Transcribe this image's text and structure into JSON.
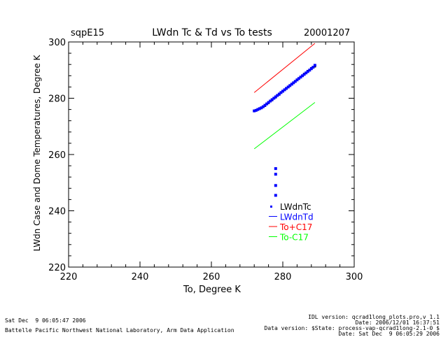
{
  "chart_data": {
    "type": "scatter",
    "site": "sqpE15",
    "title": "LWdn Tc & Td vs To tests",
    "date": "20001207",
    "xlabel": "To, Degree K",
    "ylabel": "LWdn Case and Dome Temperatures, Degree K",
    "xlim": [
      220,
      300
    ],
    "ylim": [
      220,
      300
    ],
    "xticks": [
      "220",
      "240",
      "260",
      "280",
      "300"
    ],
    "yticks": [
      "220",
      "240",
      "260",
      "280",
      "300"
    ],
    "legend_position": "lower-right",
    "series": [
      {
        "name": "LWdnTc",
        "color": "#000000",
        "kind": "points",
        "x": [
          272.0,
          273.0,
          274.0,
          275.0,
          276.0,
          277.0,
          278.0,
          279.0,
          280.0,
          281.0,
          282.0,
          283.0,
          284.0,
          285.0,
          286.0,
          287.0,
          288.0,
          289.0
        ],
        "y": [
          275.5,
          276.0,
          276.5,
          277.3,
          278.3,
          279.3,
          280.3,
          281.3,
          282.4,
          283.4,
          284.4,
          285.5,
          286.6,
          287.6,
          288.7,
          289.7,
          290.7,
          291.3
        ]
      },
      {
        "name": "LWdnTd",
        "color": "#0000ff",
        "kind": "points",
        "x": [
          272.0,
          272.5,
          273.0,
          273.5,
          274.0,
          274.5,
          275.0,
          275.5,
          276.0,
          276.5,
          277.0,
          277.5,
          278.0,
          278.5,
          279.0,
          279.5,
          280.0,
          280.5,
          281.0,
          281.5,
          282.0,
          282.5,
          283.0,
          283.5,
          284.0,
          284.5,
          285.0,
          285.5,
          286.0,
          286.5,
          287.0,
          287.5,
          288.0,
          288.5,
          289.0,
          278.0,
          278.0,
          278.0,
          278.0
        ],
        "y": [
          275.5,
          275.7,
          276.0,
          276.3,
          276.6,
          277.0,
          277.5,
          278.0,
          278.5,
          279.0,
          279.5,
          280.0,
          280.5,
          281.0,
          281.5,
          282.0,
          282.5,
          283.0,
          283.5,
          284.0,
          284.5,
          285.0,
          285.5,
          286.0,
          286.5,
          287.0,
          287.5,
          288.0,
          288.5,
          289.0,
          289.5,
          290.0,
          290.5,
          291.0,
          291.7,
          255.0,
          253.0,
          249.0,
          245.5
        ]
      },
      {
        "name": "To+C17",
        "color": "#ff0000",
        "kind": "line",
        "x": [
          272.0,
          289.0
        ],
        "y": [
          282.0,
          299.5
        ]
      },
      {
        "name": "To-C17",
        "color": "#00ff00",
        "kind": "line",
        "x": [
          272.0,
          289.0
        ],
        "y": [
          262.0,
          278.5
        ]
      }
    ]
  },
  "footer": {
    "datetime_left": "Sat Dec  9 06:05:47 2006",
    "lab": "Battelle Pacific Northwest National Laboratory, Arm Data Application",
    "idl_version": "IDL version: qcrad1long_plots.pro,v 1.1",
    "code_date": "Date: 2006/12/01 16:37:51",
    "data_version": "Data version: $State: process-vap-qcrad1long-2.1-0 $",
    "datetime_right": "Date: Sat Dec  9 06:05:29 2006"
  }
}
